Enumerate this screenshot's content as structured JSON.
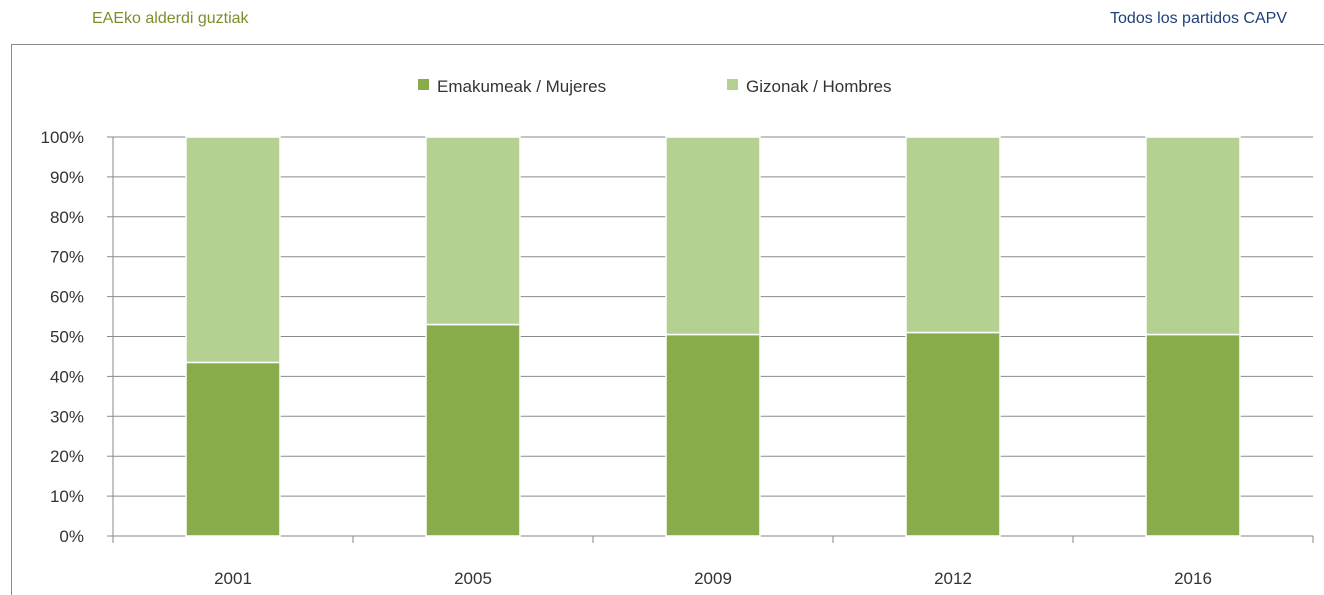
{
  "header": {
    "left_title": "EAEko alderdi guztiak",
    "right_title": "Todos los partidos CAPV"
  },
  "colors": {
    "women": "#88ab4b",
    "men": "#b5d192",
    "grid": "#8a8a8a",
    "header_left": "#7a8f2c",
    "header_right": "#1f3f7a"
  },
  "chart_data": {
    "type": "bar",
    "stacked": true,
    "percent": true,
    "categories": [
      "2001",
      "2005",
      "2009",
      "2012",
      "2016"
    ],
    "series": [
      {
        "name": "Emakumeak / Mujeres",
        "values": [
          43.5,
          53,
          50.5,
          51,
          50.5
        ]
      },
      {
        "name": "Gizonak / Hombres",
        "values": [
          56.5,
          47,
          49.5,
          49,
          49.5
        ]
      }
    ],
    "yticks": [
      "0%",
      "10%",
      "20%",
      "30%",
      "40%",
      "50%",
      "60%",
      "70%",
      "80%",
      "90%",
      "100%"
    ],
    "ylim": [
      0,
      100
    ],
    "grid": true,
    "legend_position": "top-center"
  }
}
